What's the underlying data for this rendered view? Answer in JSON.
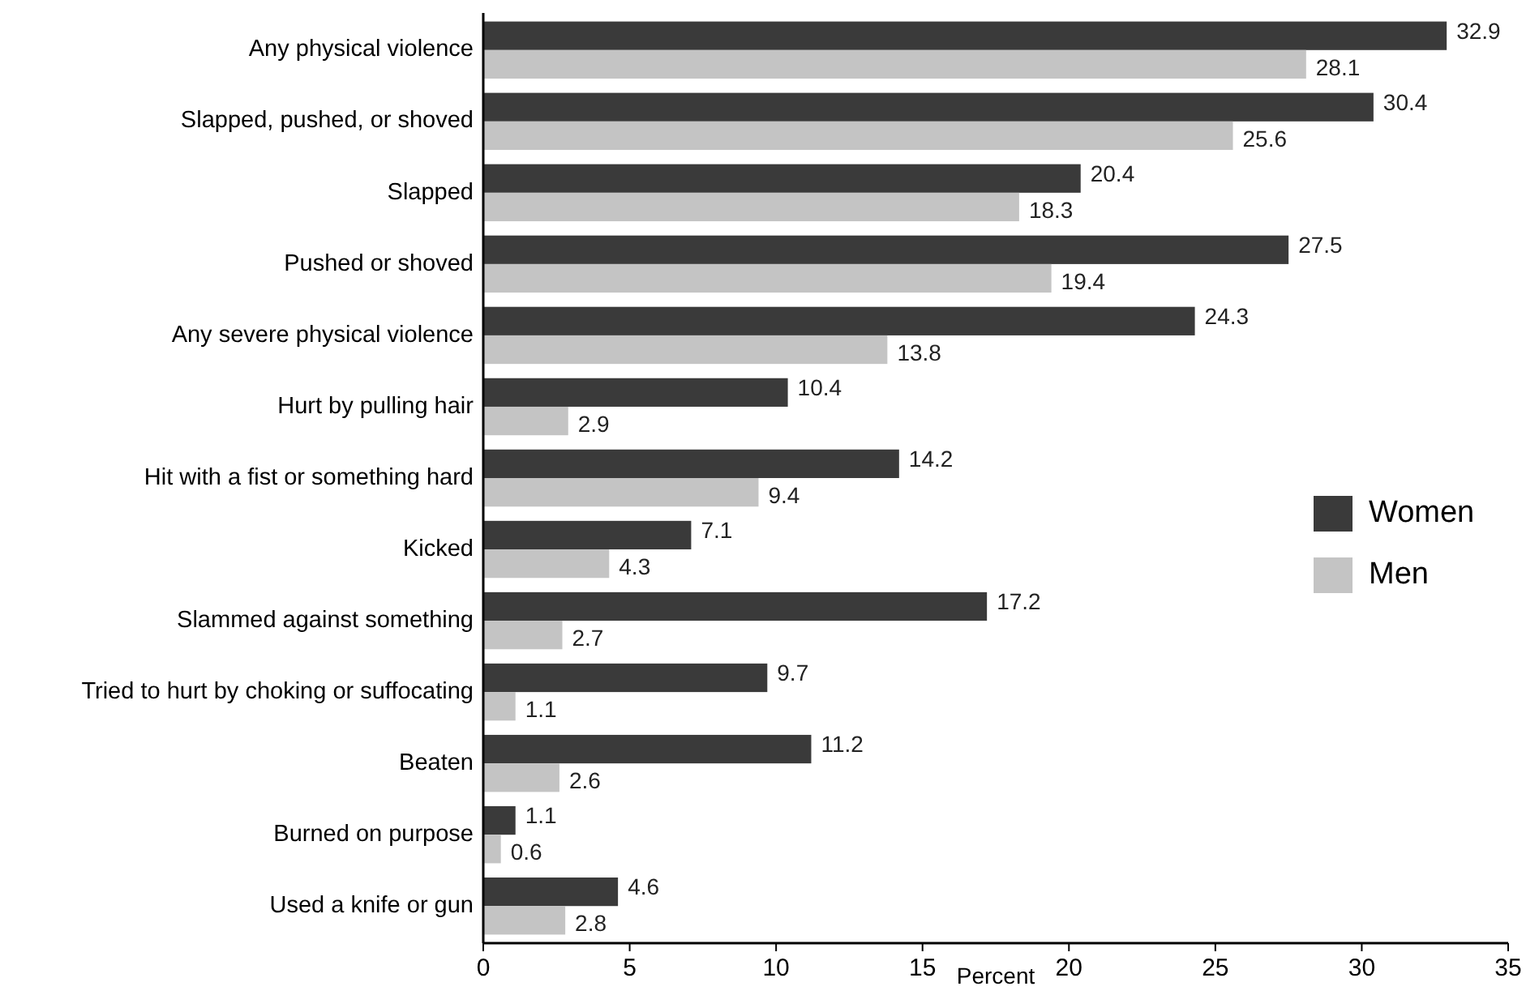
{
  "chart_data": {
    "type": "bar",
    "orientation": "horizontal",
    "xlabel": "Percent",
    "categories": [
      "Any physical violence",
      "Slapped, pushed, or shoved",
      "Slapped",
      "Pushed or shoved",
      "Any severe physical violence",
      "Hurt by pulling hair",
      "Hit with a fist or something hard",
      "Kicked",
      "Slammed against something",
      "Tried to hurt by choking or suffocating",
      "Beaten",
      "Burned on purpose",
      "Used a knife or gun"
    ],
    "series": [
      {
        "name": "Women",
        "color": "#3a3a3a",
        "values": [
          32.9,
          30.4,
          20.4,
          27.5,
          24.3,
          10.4,
          14.2,
          7.1,
          17.2,
          9.7,
          11.2,
          1.1,
          4.6
        ]
      },
      {
        "name": "Men",
        "color": "#c4c4c4",
        "values": [
          28.1,
          25.6,
          18.3,
          19.4,
          13.8,
          2.9,
          9.4,
          4.3,
          2.7,
          1.1,
          2.6,
          0.6,
          2.8
        ]
      }
    ],
    "xlim": [
      0,
      35
    ],
    "xticks": [
      0,
      5,
      10,
      15,
      20,
      25,
      30,
      35
    ],
    "data_labels": true,
    "grid": false,
    "legend": "right"
  }
}
